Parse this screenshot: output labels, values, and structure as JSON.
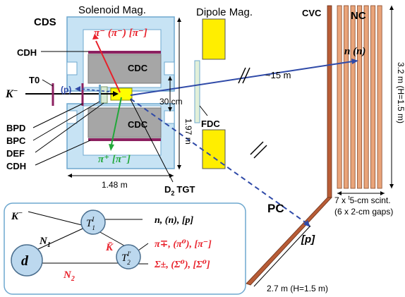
{
  "colors": {
    "magnet_blue": "#c7e3f4",
    "magnet_edge": "#6fa8cf",
    "cdc_gray": "#a6a6a6",
    "target_yellow": "#ffff00",
    "dipole_yellow": "#ffee00",
    "pi_red": "#e8202a",
    "pi_green": "#22a83a",
    "beam_black": "#000000",
    "neutron_blue": "#2f4aa8",
    "proton_blue": "#2f4aa8",
    "nc_stripe": "#e9a47a",
    "nc_stripe_edge": "#8a4a2a",
    "cvc_brown": "#b85c36",
    "box_edge": "#6fa8cf",
    "node_fill": "#bcd8ee",
    "text_red": "#e8202a"
  },
  "labels": {
    "solenoid": "Solenoid Mag.",
    "dipole": "Dipole Mag.",
    "cds": "CDS",
    "cvc": "CVC",
    "nc": "NC",
    "cdh_top": "CDH",
    "cdc_top": "CDC",
    "cdc_bottom": "CDC",
    "cdh_bottom": "CDH",
    "t0": "T0",
    "kaon": "K",
    "kaon_sup": "−",
    "p_beam": "(p)",
    "bpd": "BPD",
    "bpc": "BPC",
    "def": "DEF",
    "fdc": "FDC",
    "d2": "D",
    "d2_sub": "2",
    "tgt": "TGT",
    "dist_30cm": "30 cm",
    "dist_197m": "1.97 m",
    "dist_148m": "1.48 m",
    "dist_15m": "~15 m",
    "nc_height": "3.2 m (H=1.5 m)",
    "nc_layers_a": "7 x ",
    "nc_layers_sup": "t",
    "nc_layers_b": "5-cm scint.",
    "nc_gaps": "(6 x 2-cm gaps)",
    "pc": "PC",
    "pc_size": "2.7 m (H=1.5 m)",
    "pi_top": "π⁻ (π⁻) [π⁻]",
    "pi_bottom": "π⁺ [π⁻]",
    "neutron": "n (n)",
    "proton": "[p]"
  },
  "feynman": {
    "k": "K",
    "k_sup": "−",
    "n1": "N",
    "n1_sub": "1",
    "kbar": "K̄",
    "n2": "N",
    "n2_sub": "2",
    "d": "d",
    "t1": "T",
    "t1_sup": "I",
    "t1_sub": "1",
    "t2": "T",
    "t2_sup": "I'",
    "t2_sub": "2",
    "out_top": "n, (n), [p]",
    "out_mid": "π∓, (π⁰), [π⁻]",
    "out_bot": "Σ±, (Σ⁰), [Σ⁰]"
  }
}
